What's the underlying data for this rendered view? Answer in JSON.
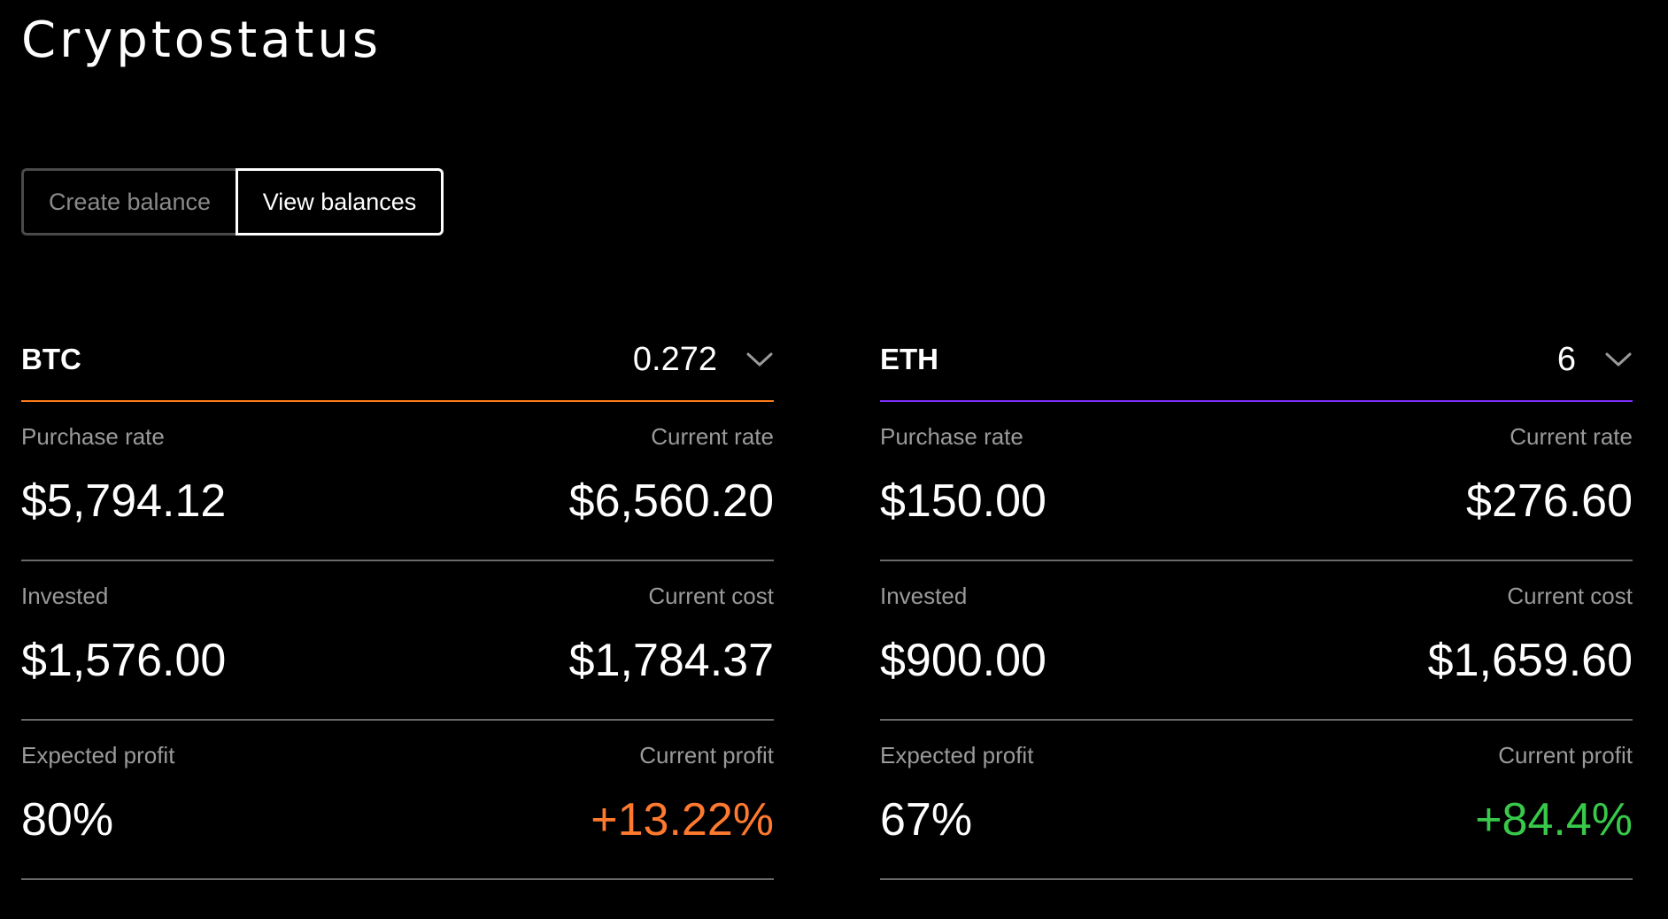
{
  "app": {
    "title": "Cryptostatus"
  },
  "tabs": [
    {
      "label": "Create balance",
      "active": false
    },
    {
      "label": "View balances",
      "active": true
    }
  ],
  "colors": {
    "background": "#000000",
    "btc_accent": "#ff7a1a",
    "eth_accent": "#7b2cff",
    "positive_profit_orange": "#ff7a2f",
    "positive_profit_green": "#38c94a",
    "divider": "#6a6a6a"
  },
  "balances": [
    {
      "symbol": "BTC",
      "amount": "0.272",
      "expand_icon": "chevron-down-icon",
      "purchase_rate_label": "Purchase rate",
      "purchase_rate": "$5,794.12",
      "current_rate_label": "Current rate",
      "current_rate": "$6,560.20",
      "invested_label": "Invested",
      "invested": "$1,576.00",
      "current_cost_label": "Current cost",
      "current_cost": "$1,784.37",
      "expected_profit_label": "Expected profit",
      "expected_profit": "80%",
      "current_profit_label": "Current profit",
      "current_profit": "+13.22%"
    },
    {
      "symbol": "ETH",
      "amount": "6",
      "expand_icon": "chevron-down-icon",
      "purchase_rate_label": "Purchase rate",
      "purchase_rate": "$150.00",
      "current_rate_label": "Current rate",
      "current_rate": "$276.60",
      "invested_label": "Invested",
      "invested": "$900.00",
      "current_cost_label": "Current cost",
      "current_cost": "$1,659.60",
      "expected_profit_label": "Expected profit",
      "expected_profit": "67%",
      "current_profit_label": "Current profit",
      "current_profit": "+84.4%"
    }
  ]
}
